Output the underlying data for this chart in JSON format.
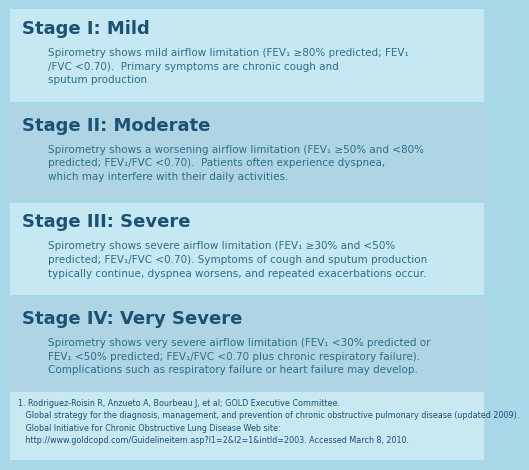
{
  "bg_color": "#a8d8e8",
  "title_color": "#1a5276",
  "body_color": "#2c6e8a",
  "footer_text_color": "#1a5276",
  "stages": [
    {
      "title": "Stage I: Mild",
      "body": "Spirometry shows mild airflow limitation (FEV₁ ≥80% predicted; FEV₁\n/FVC <0.70).  Primary symptoms are chronic cough and\nsputum production",
      "bg": "#c5e8f2"
    },
    {
      "title": "Stage II: Moderate",
      "body": "Spirometry shows a worsening airflow limitation (FEV₁ ≥50% and <80%\npredicted; FEV₁/FVC <0.70).  Patients often experience dyspnea,\nwhich may interfere with their daily activities.",
      "bg": "#afd4e4"
    },
    {
      "title": "Stage III: Severe",
      "body": "Spirometry shows severe airflow limitation (FEV₁ ≥30% and <50%\npredicted; FEV₁/FVC <0.70). Symptoms of cough and sputum production\ntypically continue, dyspnea worsens, and repeated exacerbations occur.",
      "bg": "#c5e8f2"
    },
    {
      "title": "Stage IV: Very Severe",
      "body": "Spirometry shows very severe airflow limitation (FEV₁ <30% predicted or\nFEV₁ <50% predicted; FEV₁/FVC <0.70 plus chronic respiratory failure).\nComplications such as respiratory failure or heart failure may develop.",
      "bg": "#afd4e4"
    }
  ],
  "footer_bg": "#c8e8f2",
  "footer": "1. Rodriguez-Roisin R, Anzueto A, Bourbeau J, et al; GOLD Executive Committee.\n   Global strategy for the diagnosis, management, and prevention of chronic obstructive pulmonary disease (updated 2009).\n   Global Initiative for Chronic Obstructive Lung Disease Web site:\n   http://www.goldcopd.com/Guidelineitem.asp?l1=2&l2=1&intId=2003. Accessed March 8, 2010.",
  "title_fontsize": 13,
  "body_fontsize": 7.5,
  "footer_fontsize": 5.8
}
